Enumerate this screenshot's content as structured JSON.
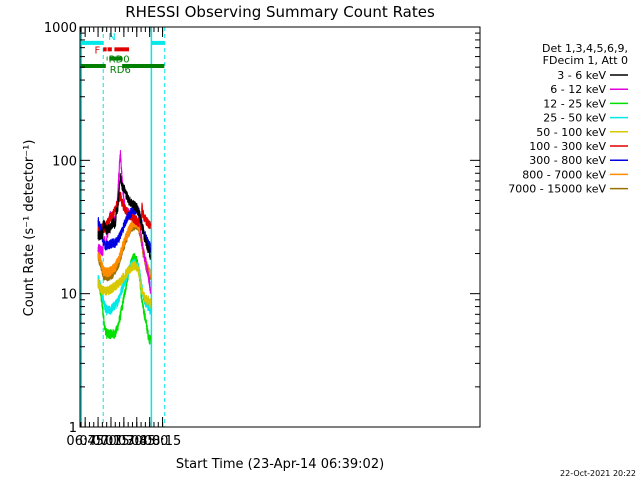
{
  "chart_data": {
    "type": "line",
    "title": "RHESSI Observing Summary Count Rates",
    "xlabel": "Start Time (23-Apr-14 06:39:02)",
    "ylabel": "Count Rate (s⁻¹ detector⁻¹)",
    "x_unit": "minutes of day",
    "x_range": [
      399,
      864
    ],
    "y_range": [
      1,
      1000
    ],
    "y_scale": "log",
    "x_ticks": [
      {
        "label": "06:45",
        "value": 405
      },
      {
        "label": "07:00",
        "value": 420
      },
      {
        "label": "07:15",
        "value": 435
      },
      {
        "label": "07:30",
        "value": 450
      },
      {
        "label": "07:45",
        "value": 465
      },
      {
        "label": "08:00",
        "value": 480
      },
      {
        "label": "08:15",
        "value": 495
      }
    ],
    "y_ticks": [
      {
        "label": "1",
        "value": 1
      },
      {
        "label": "10",
        "value": 10
      },
      {
        "label": "100",
        "value": 100
      },
      {
        "label": "1000",
        "value": 1000
      }
    ],
    "timestamp": "22-Oct-2021 20:22",
    "legend": {
      "placement": "right",
      "header": [
        "Det 1,3,4,5,6,9,",
        "FDecim 1, Att 0"
      ],
      "entries": [
        {
          "label": "3 - 6 keV",
          "color": "#000000"
        },
        {
          "label": "6 - 12 keV",
          "color": "#e000e0"
        },
        {
          "label": "12 - 25 keV",
          "color": "#00e000"
        },
        {
          "label": "25 - 50 keV",
          "color": "#00e8e8"
        },
        {
          "label": "50 - 100 keV",
          "color": "#d8c800"
        },
        {
          "label": "100 - 300 keV",
          "color": "#e00000"
        },
        {
          "label": "300 - 800 keV",
          "color": "#0000e0"
        },
        {
          "label": "800 - 7000 keV",
          "color": "#ff8c00"
        },
        {
          "label": "7000 - 15000 keV",
          "color": "#9a7000"
        }
      ]
    },
    "flags": [
      {
        "label": "N",
        "color": "#00e8e8",
        "y": 760,
        "segments": [
          [
            400,
            426
          ],
          [
            482,
            497
          ]
        ]
      },
      {
        "label": "F",
        "color": "#e00000",
        "y": 680,
        "segments": [
          [
            426,
            430
          ],
          [
            431,
            436
          ],
          [
            439,
            456
          ]
        ]
      },
      {
        "label": "RD0",
        "color": "#008000",
        "y": 580,
        "segments": [
          [
            430,
            431
          ],
          [
            433,
            448
          ]
        ]
      },
      {
        "label": "RD6",
        "color": "#008000",
        "y": 510,
        "segments": [
          [
            400,
            429
          ],
          [
            448,
            474
          ],
          [
            474,
            497
          ]
        ]
      }
    ],
    "vertical_markers": [
      {
        "x": 400.5,
        "color": "#00e8e8",
        "style": "solid"
      },
      {
        "x": 426,
        "color": "#00e8e8",
        "style": "dashed"
      },
      {
        "x": 482,
        "color": "#00e8e8",
        "style": "solid"
      },
      {
        "x": 497.5,
        "color": "#00e8e8",
        "style": "dashed"
      }
    ],
    "series": [
      {
        "name": "3 - 6 keV",
        "color": "#000000",
        "points": [
          [
            420,
            27
          ],
          [
            424,
            28
          ],
          [
            425.5,
            27
          ],
          [
            426,
            34
          ],
          [
            430,
            30
          ],
          [
            434,
            31
          ],
          [
            436,
            33
          ],
          [
            438,
            35
          ],
          [
            440,
            32
          ],
          [
            441,
            40
          ],
          [
            443,
            45
          ],
          [
            444,
            55
          ],
          [
            445,
            68
          ],
          [
            446,
            75
          ],
          [
            447,
            70
          ],
          [
            448,
            65
          ],
          [
            450,
            62
          ],
          [
            453,
            55
          ],
          [
            456,
            50
          ],
          [
            459,
            48
          ],
          [
            462,
            46
          ],
          [
            465,
            44
          ],
          [
            468,
            40
          ],
          [
            471,
            32
          ],
          [
            473,
            28
          ],
          [
            476,
            24
          ],
          [
            478,
            22
          ],
          [
            480,
            20
          ],
          [
            481,
            19
          ]
        ]
      },
      {
        "name": "6 - 12 keV",
        "color": "#e000e0",
        "points": [
          [
            420,
            22
          ],
          [
            424,
            21
          ],
          [
            425.5,
            20
          ],
          [
            426,
            25
          ],
          [
            428,
            25
          ],
          [
            429,
            22
          ],
          [
            431,
            28
          ],
          [
            433,
            35
          ],
          [
            434,
            40
          ],
          [
            436,
            38
          ],
          [
            438,
            36
          ],
          [
            440,
            35
          ],
          [
            441,
            40
          ],
          [
            443,
            55
          ],
          [
            444,
            75
          ],
          [
            445,
            95
          ],
          [
            446,
            110
          ],
          [
            447,
            90
          ],
          [
            448,
            70
          ],
          [
            450,
            50
          ],
          [
            452,
            42
          ],
          [
            456,
            40
          ],
          [
            460,
            42
          ],
          [
            464,
            44
          ],
          [
            467,
            42
          ],
          [
            469,
            38
          ],
          [
            470,
            27
          ],
          [
            473,
            20
          ],
          [
            476,
            17
          ],
          [
            478,
            14
          ],
          [
            480,
            12
          ],
          [
            481,
            10
          ]
        ]
      },
      {
        "name": "12 - 25 keV",
        "color": "#00e000",
        "points": [
          [
            420,
            12
          ],
          [
            422,
            11
          ],
          [
            424,
            9
          ],
          [
            426,
            7
          ],
          [
            428,
            5.5
          ],
          [
            430,
            5
          ],
          [
            432,
            5
          ],
          [
            436,
            5
          ],
          [
            440,
            5
          ],
          [
            444,
            6
          ],
          [
            448,
            8
          ],
          [
            452,
            11
          ],
          [
            456,
            15
          ],
          [
            460,
            18
          ],
          [
            463,
            19
          ],
          [
            466,
            17
          ],
          [
            468,
            14
          ],
          [
            470,
            10
          ],
          [
            472,
            8
          ],
          [
            474,
            7
          ],
          [
            476,
            6
          ],
          [
            478,
            5
          ],
          [
            480,
            4.5
          ],
          [
            481,
            4.5
          ]
        ]
      },
      {
        "name": "25 - 50 keV",
        "color": "#00e8e8",
        "points": [
          [
            420,
            13
          ],
          [
            422,
            12
          ],
          [
            424,
            10.5
          ],
          [
            426,
            9
          ],
          [
            428,
            8
          ],
          [
            430,
            7.5
          ],
          [
            434,
            7.5
          ],
          [
            438,
            8
          ],
          [
            442,
            8.5
          ],
          [
            446,
            10
          ],
          [
            450,
            12
          ],
          [
            454,
            14
          ],
          [
            458,
            16
          ],
          [
            462,
            17
          ],
          [
            466,
            16
          ],
          [
            468,
            15
          ],
          [
            470,
            12
          ],
          [
            472,
            10
          ],
          [
            474,
            9
          ],
          [
            476,
            8.5
          ],
          [
            478,
            8
          ],
          [
            480,
            7.5
          ],
          [
            481,
            7.5
          ]
        ]
      },
      {
        "name": "50 - 100 keV",
        "color": "#d8c800",
        "points": [
          [
            420,
            12
          ],
          [
            423,
            11
          ],
          [
            426,
            10.5
          ],
          [
            428,
            10.5
          ],
          [
            432,
            10.5
          ],
          [
            436,
            11
          ],
          [
            440,
            11.5
          ],
          [
            444,
            12
          ],
          [
            448,
            13
          ],
          [
            452,
            14
          ],
          [
            456,
            15
          ],
          [
            460,
            16
          ],
          [
            463,
            16.5
          ],
          [
            466,
            15.5
          ],
          [
            468,
            14
          ],
          [
            470,
            11
          ],
          [
            472,
            10
          ],
          [
            474,
            9.5
          ],
          [
            476,
            9
          ],
          [
            478,
            9
          ],
          [
            480,
            8.5
          ],
          [
            481,
            8.5
          ]
        ]
      },
      {
        "name": "100 - 300 keV",
        "color": "#e00000",
        "points": [
          [
            420,
            30
          ],
          [
            424,
            31
          ],
          [
            426,
            31
          ],
          [
            428,
            30
          ],
          [
            430,
            33
          ],
          [
            432,
            35
          ],
          [
            434,
            37
          ],
          [
            436,
            38
          ],
          [
            438,
            40
          ],
          [
            440,
            43
          ],
          [
            442,
            47
          ],
          [
            444,
            50
          ],
          [
            446,
            55
          ],
          [
            448,
            48
          ],
          [
            450,
            45
          ],
          [
            454,
            40
          ],
          [
            458,
            38
          ],
          [
            462,
            36
          ],
          [
            466,
            35
          ],
          [
            468,
            34
          ],
          [
            470,
            32
          ],
          [
            471,
            45
          ],
          [
            472,
            40
          ],
          [
            474,
            37
          ],
          [
            476,
            35
          ],
          [
            478,
            34
          ],
          [
            480,
            33
          ],
          [
            481,
            32
          ]
        ]
      },
      {
        "name": "300 - 800 keV",
        "color": "#0000e0",
        "points": [
          [
            420,
            35
          ],
          [
            422,
            32
          ],
          [
            424,
            30
          ],
          [
            426,
            24
          ],
          [
            428,
            23
          ],
          [
            432,
            23
          ],
          [
            436,
            24
          ],
          [
            440,
            24
          ],
          [
            444,
            26
          ],
          [
            448,
            30
          ],
          [
            452,
            35
          ],
          [
            456,
            39
          ],
          [
            460,
            42
          ],
          [
            464,
            43
          ],
          [
            466,
            42
          ],
          [
            468,
            40
          ],
          [
            470,
            35
          ],
          [
            472,
            31
          ],
          [
            474,
            28
          ],
          [
            476,
            26
          ],
          [
            478,
            24
          ],
          [
            480,
            23
          ],
          [
            481,
            22
          ]
        ]
      },
      {
        "name": "800 - 7000 keV",
        "color": "#ff8c00",
        "points": [
          [
            420,
            20
          ],
          [
            422,
            18.5
          ],
          [
            424,
            17
          ],
          [
            426,
            15
          ],
          [
            428,
            14.5
          ],
          [
            432,
            14.5
          ],
          [
            436,
            15
          ],
          [
            440,
            16
          ],
          [
            444,
            18
          ],
          [
            448,
            22
          ],
          [
            452,
            26
          ],
          [
            456,
            30
          ],
          [
            460,
            33
          ],
          [
            464,
            34
          ],
          [
            466,
            33
          ],
          [
            468,
            31
          ],
          [
            470,
            27
          ],
          [
            472,
            22
          ],
          [
            474,
            19
          ],
          [
            476,
            17
          ],
          [
            478,
            15.5
          ],
          [
            480,
            14.5
          ],
          [
            481,
            14
          ]
        ]
      },
      {
        "name": "7000 - 15000 keV",
        "color": "#9a7000",
        "points": [
          [
            420,
            19
          ],
          [
            424,
            16
          ],
          [
            426,
            14
          ],
          [
            428,
            13.5
          ],
          [
            432,
            13.5
          ],
          [
            436,
            14
          ],
          [
            440,
            15
          ],
          [
            444,
            17
          ],
          [
            448,
            21
          ],
          [
            452,
            25
          ],
          [
            456,
            29
          ],
          [
            460,
            32
          ],
          [
            464,
            33
          ],
          [
            466,
            32
          ],
          [
            468,
            30
          ],
          [
            470,
            26
          ],
          [
            472,
            21
          ],
          [
            474,
            18
          ],
          [
            476,
            16
          ],
          [
            478,
            14.5
          ],
          [
            480,
            13.5
          ],
          [
            481,
            13
          ]
        ]
      }
    ]
  }
}
